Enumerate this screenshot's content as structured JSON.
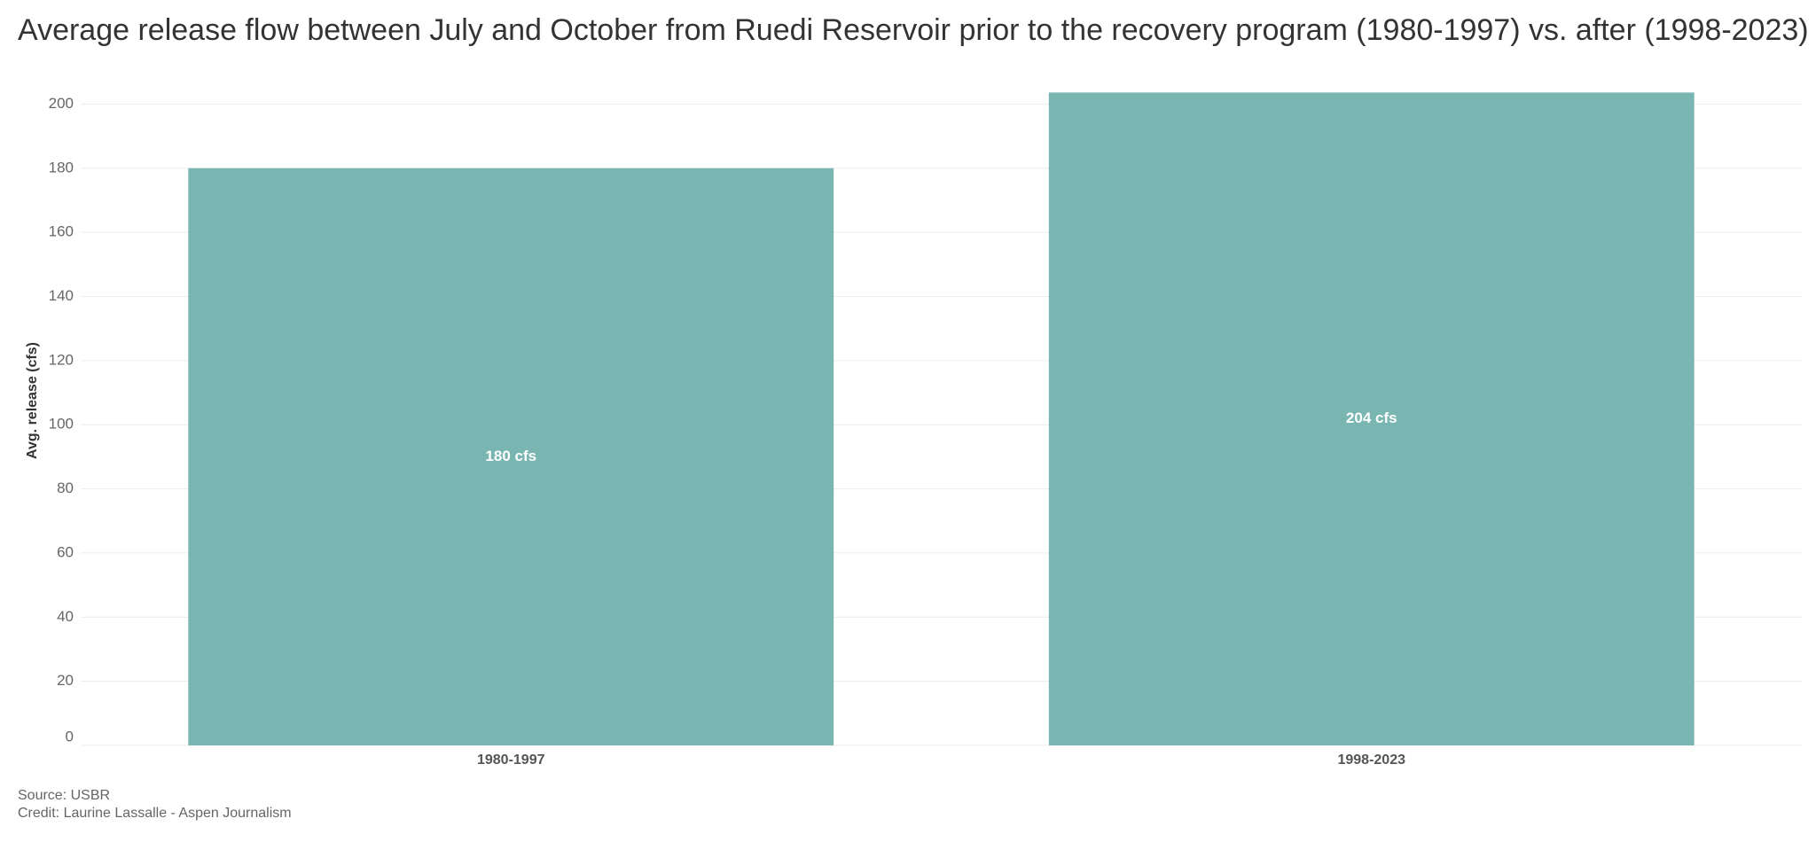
{
  "chart_data": {
    "type": "bar",
    "title": "Average release flow between July and October from Ruedi Reservoir prior to the recovery program (1980-1997) vs. after (1998-2023)",
    "y_label": "Avg. release (cfs)",
    "categories": [
      "1980-1997",
      "1998-2023"
    ],
    "values": [
      180,
      203.6
    ],
    "value_labels": [
      "180 cfs",
      "204 cfs"
    ],
    "color": "#7ab6b1",
    "ylim": [
      0,
      212
    ],
    "yticks": [
      0,
      20,
      40,
      60,
      80,
      100,
      120,
      140,
      160,
      180,
      200
    ],
    "grid": true,
    "source": "Source: USBR",
    "credit": "Credit: Laurine Lassalle - Aspen Journalism"
  }
}
